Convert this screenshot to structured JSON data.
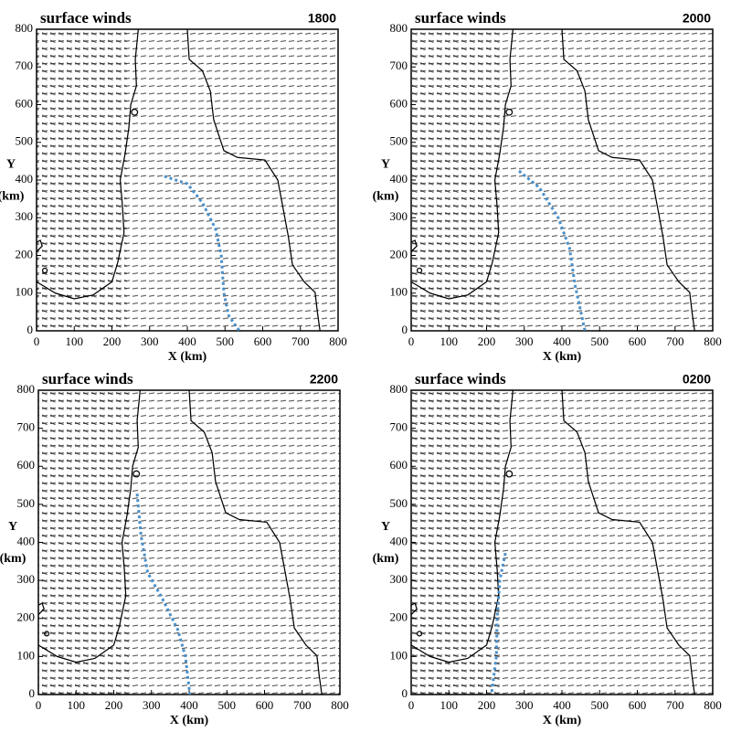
{
  "chart_data": [
    {
      "type": "line",
      "title": "surface winds",
      "subtitle": "1800",
      "xlabel": "X (km)",
      "ylabel": [
        "Y",
        "(km)"
      ],
      "xlim": [
        0,
        800
      ],
      "ylim": [
        0,
        800
      ],
      "xticks": [
        0,
        100,
        200,
        300,
        400,
        500,
        600,
        700,
        800
      ],
      "yticks": [
        0,
        100,
        200,
        300,
        400,
        500,
        600,
        700,
        800
      ],
      "series": [
        {
          "color": "#4a8fc9",
          "x": [
            339,
            400,
            440,
            475,
            490,
            497,
            510,
            538
          ],
          "values": [
            410,
            390,
            340,
            270,
            200,
            100,
            40,
            0
          ]
        }
      ]
    },
    {
      "type": "line",
      "title": "surface winds",
      "subtitle": "2000",
      "xlabel": "X (km)",
      "ylabel": [
        "Y",
        "(km)"
      ],
      "xlim": [
        0,
        800
      ],
      "ylim": [
        0,
        800
      ],
      "xticks": [
        0,
        100,
        200,
        300,
        400,
        500,
        600,
        700,
        800
      ],
      "yticks": [
        0,
        100,
        200,
        300,
        400,
        500,
        600,
        700,
        800
      ],
      "series": [
        {
          "color": "#4a8fc9",
          "x": [
            286,
            340,
            390,
            420,
            435,
            461
          ],
          "values": [
            424,
            380,
            300,
            220,
            120,
            0
          ]
        }
      ]
    },
    {
      "type": "line",
      "title": "surface winds",
      "subtitle": "2200",
      "xlabel": "X (km)",
      "ylabel": [
        "Y",
        "(km)"
      ],
      "xlim": [
        0,
        800
      ],
      "ylim": [
        0,
        800
      ],
      "xticks": [
        0,
        100,
        200,
        300,
        400,
        500,
        600,
        700,
        800
      ],
      "yticks": [
        0,
        100,
        200,
        300,
        400,
        500,
        600,
        700,
        800
      ],
      "series": [
        {
          "color": "#4a8fc9",
          "x": [
            262,
            272,
            290,
            330,
            370,
            390,
            402
          ],
          "values": [
            528,
            420,
            320,
            250,
            170,
            100,
            0
          ]
        }
      ]
    },
    {
      "type": "line",
      "title": "surface winds",
      "subtitle": "0200",
      "xlabel": "X (km)",
      "ylabel": [
        "Y",
        "(km)"
      ],
      "xlim": [
        0,
        800
      ],
      "ylim": [
        0,
        800
      ],
      "xticks": [
        0,
        100,
        200,
        300,
        400,
        500,
        600,
        700,
        800
      ],
      "yticks": [
        0,
        100,
        200,
        300,
        400,
        500,
        600,
        700,
        800
      ],
      "series": [
        {
          "color": "#4a8fc9",
          "x": [
            250,
            235,
            228,
            226,
            213
          ],
          "values": [
            372,
            300,
            200,
            100,
            0
          ]
        }
      ]
    }
  ]
}
